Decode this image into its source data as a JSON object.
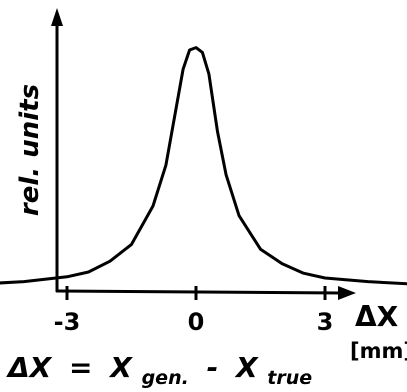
{
  "chart_data": {
    "type": "line",
    "title": "",
    "xlabel": "ΔX",
    "xunit": "[mm]",
    "ylabel": "rel. units",
    "xlim": [
      -6,
      6
    ],
    "ylim": [
      0,
      1
    ],
    "xticks": [
      "-6",
      "-3",
      "0",
      "3",
      "6"
    ],
    "yticks": [],
    "grid": false,
    "legend": "none",
    "annotation": {
      "lhs": "ΔX",
      "eq": "=",
      "x1": "X",
      "x1_sub": "gen.",
      "minus": "-",
      "x2": "X",
      "x2_sub": "true"
    },
    "series": [
      {
        "x": [
          -6.2,
          -6,
          -5,
          -4,
          -3,
          -2.5,
          -2,
          -1.5,
          -1,
          -0.7,
          -0.5,
          -0.3,
          -0.15,
          0,
          0.15,
          0.3,
          0.5,
          0.7,
          1,
          1.5,
          2,
          2.5,
          3,
          4,
          5,
          6
        ],
        "values": [
          0.02,
          0.02,
          0.025,
          0.035,
          0.055,
          0.075,
          0.12,
          0.19,
          0.35,
          0.52,
          0.72,
          0.92,
          1.0,
          1.01,
          0.99,
          0.9,
          0.66,
          0.48,
          0.31,
          0.17,
          0.11,
          0.07,
          0.05,
          0.035,
          0.025,
          0.02
        ]
      }
    ],
    "colors": {
      "ink": "#000000",
      "background": "#ffffff"
    }
  }
}
